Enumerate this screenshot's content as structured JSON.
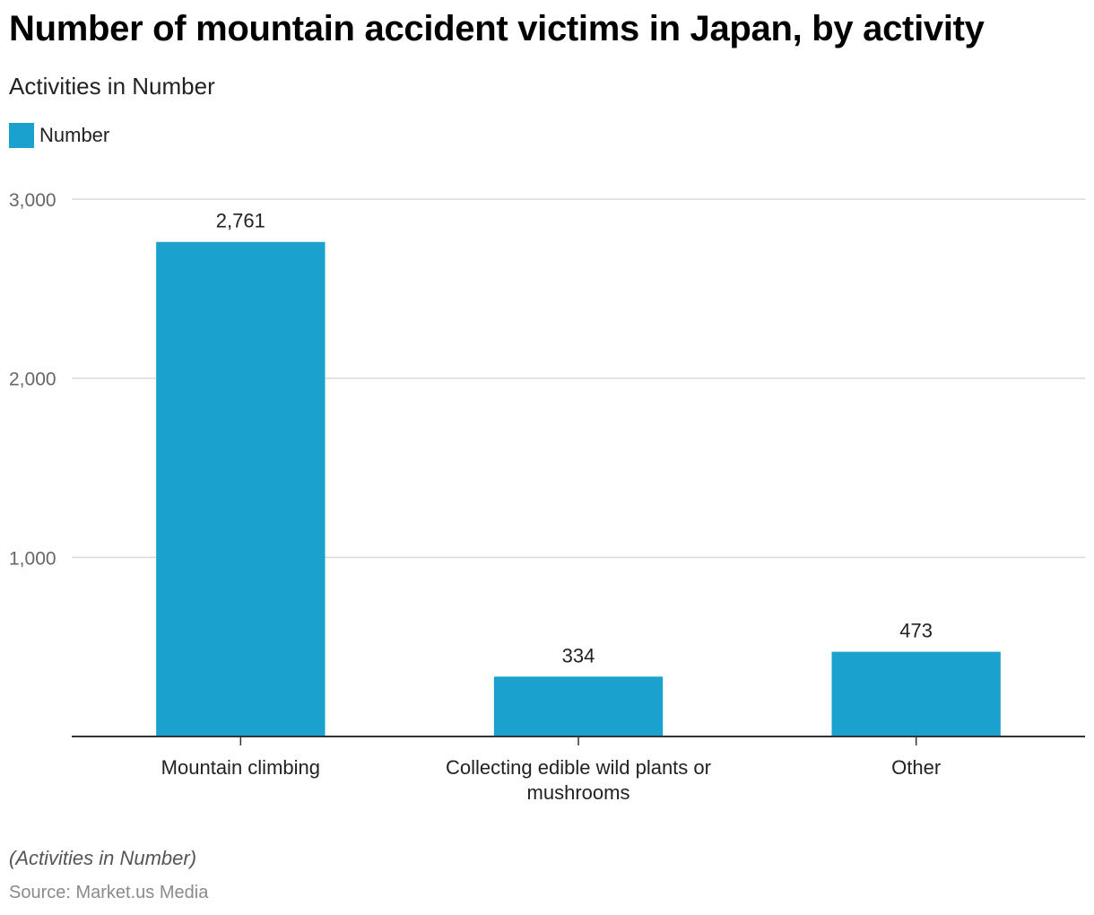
{
  "header": {
    "title": "Number of mountain accident victims in Japan, by activity",
    "subtitle": "Activities in Number"
  },
  "legend": {
    "label": "Number",
    "color": "#1aa1cd"
  },
  "footer": {
    "note": "(Activities in Number)",
    "source": "Source: Market.us Media"
  },
  "chart_data": {
    "type": "bar",
    "title": "Number of mountain accident victims in Japan, by activity",
    "subtitle": "Activities in Number",
    "xlabel": "",
    "ylabel": "",
    "categories": [
      "Mountain climbing",
      "Collecting edible wild plants or mushrooms",
      "Other"
    ],
    "category_lines": [
      [
        "Mountain climbing"
      ],
      [
        "Collecting edible wild plants or",
        "mushrooms"
      ],
      [
        "Other"
      ]
    ],
    "series": [
      {
        "name": "Number",
        "values": [
          2761,
          334,
          473
        ],
        "value_labels": [
          "2,761",
          "334",
          "473"
        ],
        "color": "#1aa1cd"
      }
    ],
    "ylim": [
      0,
      3000
    ],
    "yticks": [
      1000,
      2000,
      3000
    ],
    "ytick_labels": [
      "1,000",
      "2,000",
      "3,000"
    ],
    "grid": true,
    "legend_position": "top-left"
  }
}
